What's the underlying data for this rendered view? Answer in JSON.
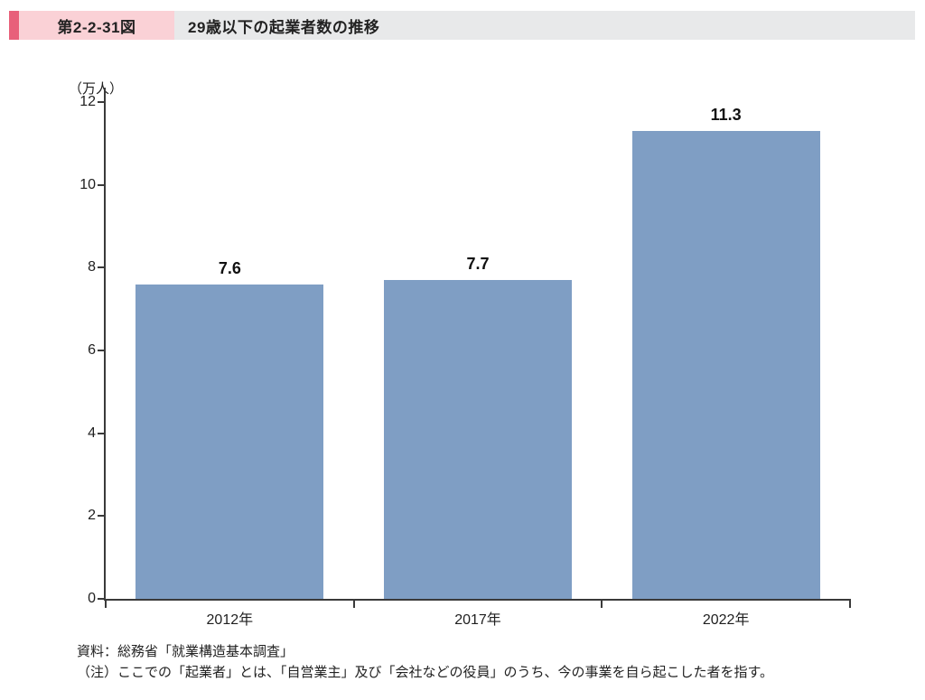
{
  "header": {
    "figure_label": "第2-2-31図",
    "title": "29歳以下の起業者数の推移"
  },
  "chart_data": {
    "type": "bar",
    "title": "29歳以下の起業者数の推移",
    "unit_label": "（万人）",
    "categories": [
      "2012年",
      "2017年",
      "2022年"
    ],
    "values": [
      7.6,
      7.7,
      11.3
    ],
    "value_labels": [
      "7.6",
      "7.7",
      "11.3"
    ],
    "xlabel": "",
    "ylabel": "万人",
    "ylim": [
      0,
      12
    ],
    "y_ticks": [
      0,
      2,
      4,
      6,
      8,
      10,
      12
    ],
    "grid": false,
    "legend_position": "none",
    "bar_color": "#7F9EC4"
  },
  "footer": {
    "source": "資料：総務省「就業構造基本調査」",
    "note": "（注）ここでの「起業者」とは、「自営業主」及び「会社などの役員」のうち、今の事業を自ら起こした者を指す。"
  },
  "colors": {
    "accent": "#E8607A",
    "figure_label_bg": "#FAD1D6",
    "title_bg": "#E8E9EA",
    "bar": "#7F9EC4",
    "axis": "#3a3a3a"
  }
}
